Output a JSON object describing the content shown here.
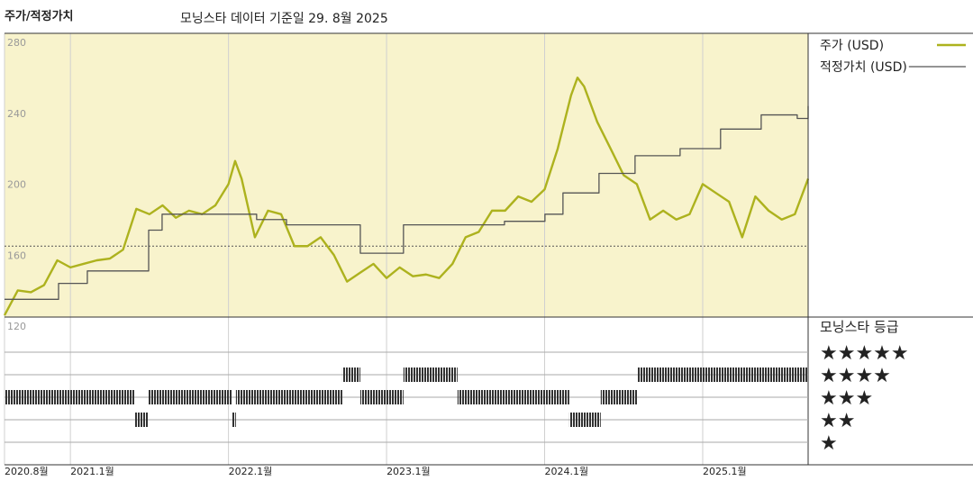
{
  "chart_data": {
    "type": "line",
    "title": "주가/적정가치",
    "subtitle": "모닝스타 데이터 기준일 29. 8월 2025",
    "xlim": [
      2020.583,
      2025.667
    ],
    "xticks": [
      {
        "value": 2020.583,
        "label": "2020.8월"
      },
      {
        "value": 2021,
        "label": "2021.1월"
      },
      {
        "value": 2022,
        "label": "2022.1월"
      },
      {
        "value": 2023,
        "label": "2023.1월"
      },
      {
        "value": 2024,
        "label": "2024.1월"
      },
      {
        "value": 2025,
        "label": "2025.1월"
      }
    ],
    "ylim": [
      120,
      280
    ],
    "yticks": [
      120,
      160,
      200,
      240,
      280
    ],
    "hline": 160,
    "background": "#f8f3cc",
    "series": [
      {
        "name": "주가 (USD)",
        "color": "#adb21e",
        "x": [
          2020.583,
          2020.667,
          2020.75,
          2020.833,
          2020.917,
          2021,
          2021.083,
          2021.167,
          2021.25,
          2021.333,
          2021.417,
          2021.5,
          2021.583,
          2021.667,
          2021.75,
          2021.833,
          2021.917,
          2022,
          2022.042,
          2022.083,
          2022.167,
          2022.25,
          2022.333,
          2022.417,
          2022.5,
          2022.583,
          2022.667,
          2022.75,
          2022.833,
          2022.917,
          2023,
          2023.083,
          2023.167,
          2023.25,
          2023.333,
          2023.417,
          2023.5,
          2023.583,
          2023.667,
          2023.75,
          2023.833,
          2023.917,
          2024,
          2024.083,
          2024.167,
          2024.208,
          2024.25,
          2024.333,
          2024.417,
          2024.5,
          2024.583,
          2024.667,
          2024.75,
          2024.833,
          2024.917,
          2025,
          2025.083,
          2025.167,
          2025.25,
          2025.333,
          2025.417,
          2025.5,
          2025.583,
          2025.667
        ],
        "values": [
          121,
          135,
          134,
          138,
          152,
          148,
          150,
          152,
          153,
          158,
          181,
          178,
          183,
          176,
          180,
          178,
          183,
          195,
          208,
          198,
          165,
          180,
          178,
          160,
          160,
          165,
          155,
          140,
          145,
          150,
          142,
          148,
          143,
          144,
          142,
          150,
          165,
          168,
          180,
          180,
          188,
          185,
          192,
          215,
          245,
          255,
          250,
          230,
          215,
          200,
          195,
          175,
          180,
          175,
          178,
          195,
          190,
          185,
          165,
          188,
          180,
          175,
          178,
          198
        ]
      },
      {
        "name": "적정가치 (USD)",
        "color": "#555555",
        "step": "post",
        "x": [
          2020.583,
          2020.925,
          2021.107,
          2021.495,
          2021.58,
          2022.178,
          2022.367,
          2022.834,
          2023.107,
          2023.746,
          2024.002,
          2024.116,
          2024.344,
          2024.572,
          2024.857,
          2025.113,
          2025.37,
          2025.598,
          2025.667
        ],
        "values": [
          130,
          139,
          146,
          169,
          178,
          175,
          172,
          156,
          172,
          174,
          178,
          190,
          201,
          211,
          215,
          226,
          234,
          232,
          239
        ]
      }
    ],
    "ratings": {
      "title": "모닝스타 등급",
      "labels": [
        "★★★★★",
        "★★★★",
        "★★★",
        "★★",
        "★"
      ],
      "periods": [
        {
          "rating": 3,
          "start": 2020.583,
          "end": 2021.409
        },
        {
          "rating": 2,
          "start": 2021.409,
          "end": 2021.495
        },
        {
          "rating": 3,
          "start": 2021.495,
          "end": 2022.025
        },
        {
          "rating": 2,
          "start": 2022.025,
          "end": 2022.047
        },
        {
          "rating": 3,
          "start": 2022.047,
          "end": 2022.72
        },
        {
          "rating": 4,
          "start": 2022.72,
          "end": 2022.834
        },
        {
          "rating": 3,
          "start": 2022.834,
          "end": 2023.107
        },
        {
          "rating": 4,
          "start": 2023.107,
          "end": 2023.449
        },
        {
          "rating": 3,
          "start": 2023.449,
          "end": 2024.156
        },
        {
          "rating": 2,
          "start": 2024.156,
          "end": 2024.355
        },
        {
          "rating": 3,
          "start": 2024.355,
          "end": 2024.589
        },
        {
          "rating": 4,
          "start": 2024.589,
          "end": 2025.667
        }
      ]
    }
  }
}
